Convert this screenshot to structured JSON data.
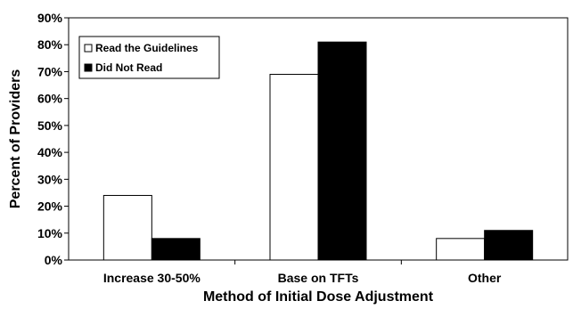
{
  "chart_data": {
    "type": "bar",
    "title": "",
    "xlabel": "Method of Initial Dose Adjustment",
    "ylabel": "Percent of Providers",
    "categories": [
      "Increase 30-50%",
      "Base on TFTs",
      "Other"
    ],
    "series": [
      {
        "name": "Read the Guidelines",
        "values": [
          24,
          69,
          8
        ],
        "color": "#ffffff"
      },
      {
        "name": "Did Not Read",
        "values": [
          8,
          81,
          11
        ],
        "color": "#000000"
      }
    ],
    "ylim": [
      0,
      90
    ],
    "yticks": [
      "0%",
      "10%",
      "20%",
      "30%",
      "40%",
      "50%",
      "60%",
      "70%",
      "80%",
      "90%"
    ],
    "grid": false,
    "legend_position": "top-left"
  }
}
